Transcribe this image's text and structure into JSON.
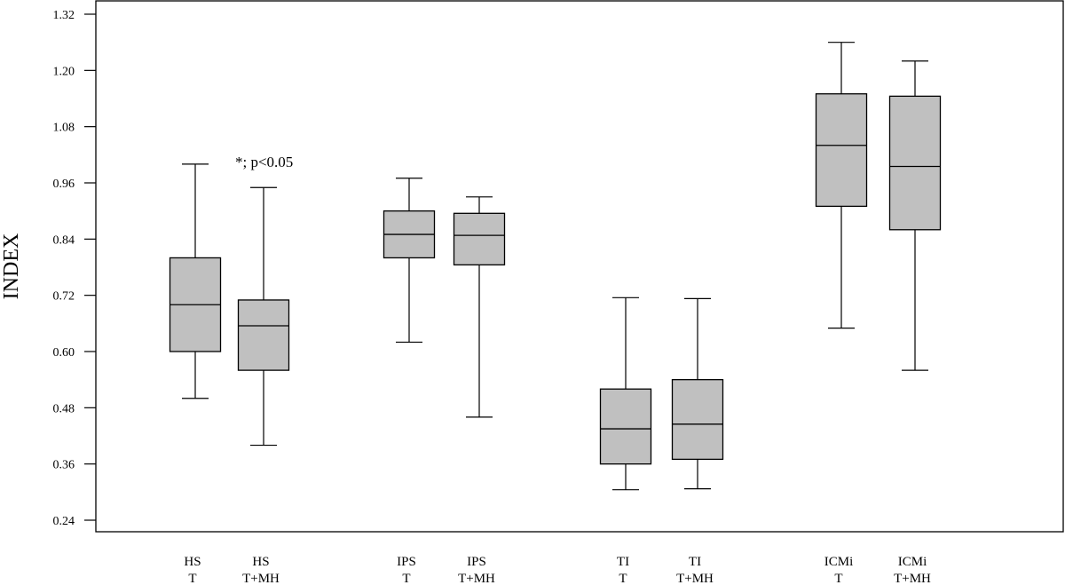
{
  "chart_data": {
    "type": "box",
    "ylabel": "INDEX",
    "ylim": [
      0.24,
      1.32
    ],
    "yticks": [
      0.24,
      0.36,
      0.48,
      0.6,
      0.72,
      0.84,
      0.96,
      1.08,
      1.2,
      1.32
    ],
    "ytick_labels": [
      "0.24",
      "0.36",
      "0.48",
      "0.60",
      "0.72",
      "0.84",
      "0.96",
      "1.08",
      "1.20",
      "1.32"
    ],
    "grid": false,
    "annotation": "*; p<0.05",
    "boxes": [
      {
        "group": "HS",
        "condition": "T",
        "whisker_low": 0.5,
        "q1": 0.6,
        "median": 0.7,
        "q3": 0.8,
        "whisker_high": 1.0
      },
      {
        "group": "HS",
        "condition": "T+MH",
        "whisker_low": 0.4,
        "q1": 0.56,
        "median": 0.655,
        "q3": 0.71,
        "whisker_high": 0.95
      },
      {
        "group": "IPS",
        "condition": "T",
        "whisker_low": 0.62,
        "q1": 0.8,
        "median": 0.85,
        "q3": 0.9,
        "whisker_high": 0.97
      },
      {
        "group": "IPS",
        "condition": "T+MH",
        "whisker_low": 0.46,
        "q1": 0.785,
        "median": 0.848,
        "q3": 0.895,
        "whisker_high": 0.93
      },
      {
        "group": "TI",
        "condition": "T",
        "whisker_low": 0.305,
        "q1": 0.36,
        "median": 0.435,
        "q3": 0.52,
        "whisker_high": 0.715
      },
      {
        "group": "TI",
        "condition": "T+MH",
        "whisker_low": 0.307,
        "q1": 0.37,
        "median": 0.445,
        "q3": 0.54,
        "whisker_high": 0.713
      },
      {
        "group": "ICMi",
        "condition": "T",
        "whisker_low": 0.65,
        "q1": 0.91,
        "median": 1.04,
        "q3": 1.15,
        "whisker_high": 1.26
      },
      {
        "group": "ICMi",
        "condition": "T+MH",
        "whisker_low": 0.56,
        "q1": 0.86,
        "median": 0.995,
        "q3": 1.145,
        "whisker_high": 1.22
      }
    ]
  }
}
